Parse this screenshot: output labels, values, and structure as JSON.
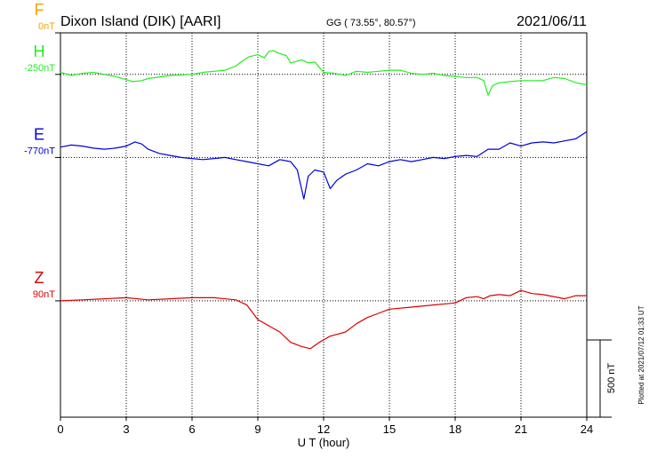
{
  "header": {
    "station": "Dixon Island (DIK)  [AARI]",
    "coords": "GG ( 73.55°,  80.57°)",
    "date": "2021/06/11"
  },
  "side_note": "Plotted at 2021/07/12 01:33 UT",
  "scale_label": "500 nT",
  "colors": {
    "F": "#f5a300",
    "H": "#22ee22",
    "E": "#0000dd",
    "Z": "#dd0000",
    "grid": "#000000"
  },
  "chart_data": {
    "type": "line",
    "xlabel": "U T (hour)",
    "xlim": [
      0,
      24
    ],
    "xticks": [
      0,
      3,
      6,
      9,
      12,
      15,
      18,
      21,
      24
    ],
    "ylim_nT": [
      0,
      1850
    ],
    "scale_bar_nT": 500,
    "series": [
      {
        "name": "F",
        "label": "0nT",
        "baseline_nT": 1850,
        "points": []
      },
      {
        "name": "H",
        "label": "-250nT",
        "baseline_nT": 1650,
        "points": [
          [
            0,
            10
          ],
          [
            0.5,
            -5
          ],
          [
            1,
            5
          ],
          [
            1.5,
            10
          ],
          [
            2,
            0
          ],
          [
            2.5,
            -10
          ],
          [
            3,
            -25
          ],
          [
            3.3,
            -35
          ],
          [
            3.7,
            -30
          ],
          [
            4,
            -20
          ],
          [
            5,
            -5
          ],
          [
            6,
            0
          ],
          [
            6.5,
            10
          ],
          [
            7,
            15
          ],
          [
            7.5,
            20
          ],
          [
            8,
            40
          ],
          [
            8.3,
            65
          ],
          [
            8.6,
            85
          ],
          [
            9,
            95
          ],
          [
            9.3,
            80
          ],
          [
            9.5,
            110
          ],
          [
            9.7,
            115
          ],
          [
            10,
            100
          ],
          [
            10.3,
            90
          ],
          [
            10.5,
            55
          ],
          [
            11,
            70
          ],
          [
            11.3,
            55
          ],
          [
            11.6,
            60
          ],
          [
            12,
            10
          ],
          [
            12.5,
            5
          ],
          [
            13,
            -5
          ],
          [
            13.5,
            15
          ],
          [
            14,
            10
          ],
          [
            14.5,
            15
          ],
          [
            15,
            20
          ],
          [
            15.5,
            20
          ],
          [
            16,
            5
          ],
          [
            16.5,
            0
          ],
          [
            17,
            5
          ],
          [
            17.5,
            -5
          ],
          [
            18,
            -10
          ],
          [
            18.5,
            -15
          ],
          [
            19,
            -15
          ],
          [
            19.3,
            -30
          ],
          [
            19.5,
            -100
          ],
          [
            19.7,
            -55
          ],
          [
            20,
            -40
          ],
          [
            20.5,
            -35
          ],
          [
            21,
            -30
          ],
          [
            21.5,
            -30
          ],
          [
            22,
            -30
          ],
          [
            22.5,
            -15
          ],
          [
            23,
            -20
          ],
          [
            23.5,
            -40
          ],
          [
            24,
            -50
          ]
        ]
      },
      {
        "name": "E",
        "label": "-770nT",
        "baseline_nT": 1250,
        "points": [
          [
            0,
            50
          ],
          [
            0.5,
            60
          ],
          [
            1,
            55
          ],
          [
            1.5,
            45
          ],
          [
            2,
            40
          ],
          [
            2.5,
            45
          ],
          [
            3,
            55
          ],
          [
            3.4,
            75
          ],
          [
            3.7,
            65
          ],
          [
            4,
            40
          ],
          [
            4.5,
            20
          ],
          [
            5,
            10
          ],
          [
            5.5,
            0
          ],
          [
            6,
            -5
          ],
          [
            6.5,
            -10
          ],
          [
            7,
            -5
          ],
          [
            7.5,
            0
          ],
          [
            8,
            -10
          ],
          [
            8.5,
            -20
          ],
          [
            9,
            -30
          ],
          [
            9.5,
            -40
          ],
          [
            10,
            -10
          ],
          [
            10.5,
            -20
          ],
          [
            10.8,
            -60
          ],
          [
            11.1,
            -200
          ],
          [
            11.3,
            -90
          ],
          [
            11.6,
            -60
          ],
          [
            12,
            -70
          ],
          [
            12.3,
            -150
          ],
          [
            12.6,
            -110
          ],
          [
            13,
            -80
          ],
          [
            13.5,
            -60
          ],
          [
            14,
            -30
          ],
          [
            14.5,
            -40
          ],
          [
            15,
            -20
          ],
          [
            15.5,
            -10
          ],
          [
            16,
            -20
          ],
          [
            16.5,
            -10
          ],
          [
            17,
            0
          ],
          [
            17.5,
            -5
          ],
          [
            18,
            5
          ],
          [
            18.5,
            10
          ],
          [
            19,
            5
          ],
          [
            19.5,
            40
          ],
          [
            20,
            40
          ],
          [
            20.5,
            70
          ],
          [
            21,
            55
          ],
          [
            21.5,
            70
          ],
          [
            22,
            75
          ],
          [
            22.5,
            70
          ],
          [
            23,
            80
          ],
          [
            23.5,
            90
          ],
          [
            24,
            125
          ]
        ]
      },
      {
        "name": "Z",
        "label": "90nT",
        "baseline_nT": 560,
        "points": [
          [
            0,
            0
          ],
          [
            1,
            5
          ],
          [
            2,
            10
          ],
          [
            3,
            15
          ],
          [
            4,
            5
          ],
          [
            5,
            10
          ],
          [
            6,
            15
          ],
          [
            7,
            15
          ],
          [
            8,
            5
          ],
          [
            8.5,
            -20
          ],
          [
            9,
            -90
          ],
          [
            9.5,
            -120
          ],
          [
            10,
            -150
          ],
          [
            10.5,
            -200
          ],
          [
            11,
            -220
          ],
          [
            11.4,
            -230
          ],
          [
            11.8,
            -200
          ],
          [
            12.3,
            -170
          ],
          [
            13,
            -150
          ],
          [
            13.5,
            -110
          ],
          [
            14,
            -80
          ],
          [
            14.5,
            -60
          ],
          [
            15,
            -40
          ],
          [
            16,
            -30
          ],
          [
            17,
            -20
          ],
          [
            18,
            -10
          ],
          [
            18.5,
            15
          ],
          [
            19,
            20
          ],
          [
            19.3,
            10
          ],
          [
            19.6,
            25
          ],
          [
            20,
            30
          ],
          [
            20.5,
            25
          ],
          [
            21,
            50
          ],
          [
            21.5,
            35
          ],
          [
            22,
            30
          ],
          [
            23,
            10
          ],
          [
            23.5,
            25
          ],
          [
            24,
            25
          ]
        ]
      }
    ]
  }
}
